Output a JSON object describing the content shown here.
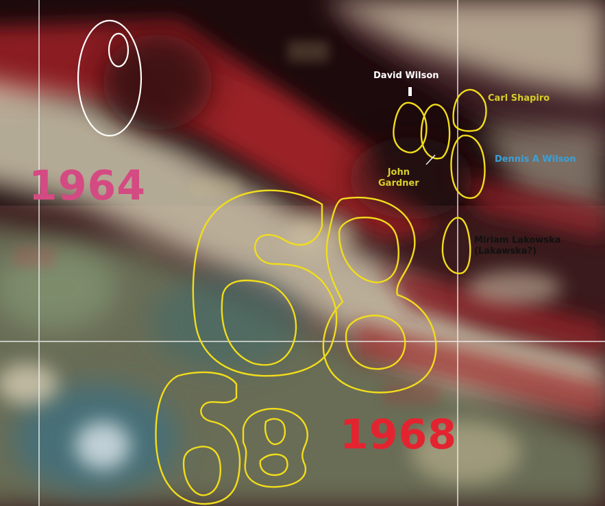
{
  "year_labels": [
    {
      "text": "1964",
      "color": "#d44a82"
    },
    {
      "text": "1968",
      "color": "#e32430"
    }
  ],
  "names": {
    "david_wilson": {
      "text": "David Wilson",
      "color": "#ffffff"
    },
    "carl_shapiro": {
      "text": "Carl Shapiro",
      "color": "#d8cf2a"
    },
    "dennis_wilson": {
      "text": "Dennis  A Wilson",
      "color": "#3aa0d8"
    },
    "john_gardner": {
      "line1": "John",
      "line2": "Gardner",
      "color": "#d8cf2a"
    },
    "miriam_lakowska": {
      "line1": "Miriam Lakowska",
      "line2": "(Lakawska?)",
      "color": "#111111"
    }
  },
  "annotation_colors": {
    "white_outline": "#ffffff",
    "yellow_outline": "#f2dd1a"
  }
}
